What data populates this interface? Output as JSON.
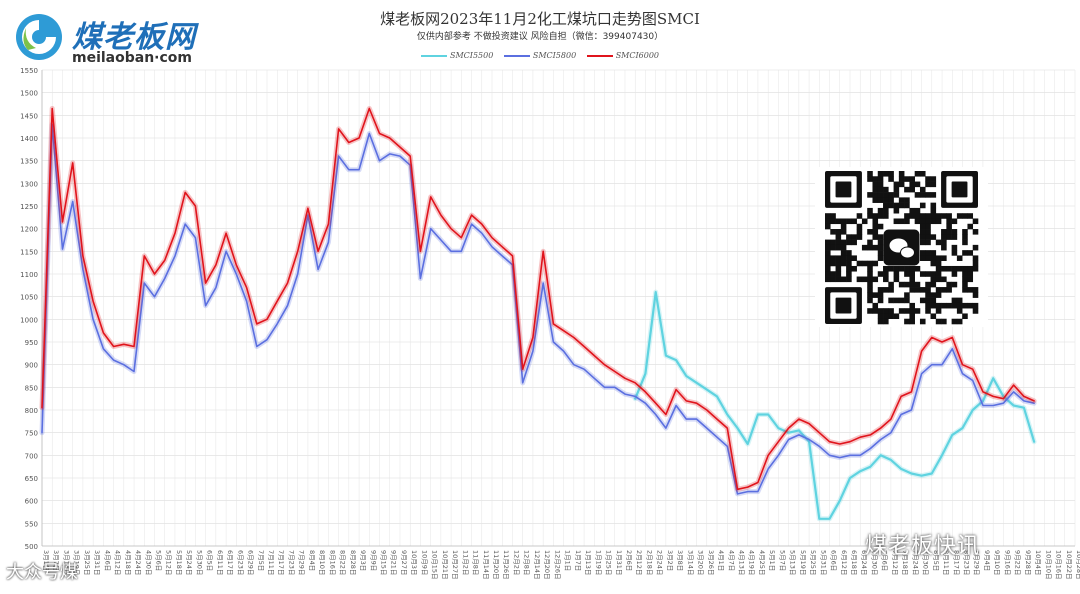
{
  "header": {
    "logo_text_cn": "煤老板网",
    "logo_text_en": "meilaoban·com",
    "title": "煤老板网2023年11月2化工煤坑口走势图SMCI",
    "subtitle": "仅供内部参考 不做投资建议 风险自担（微信：399407430）"
  },
  "watermarks": {
    "brand": "煤老板快讯",
    "corner": "大众号煤"
  },
  "qr": {
    "icon": "wechat-icon"
  },
  "chart_data": {
    "type": "line",
    "ylim": [
      500,
      1550
    ],
    "yticks": [
      500,
      550,
      600,
      650,
      700,
      750,
      800,
      850,
      900,
      950,
      1000,
      1050,
      1100,
      1150,
      1200,
      1250,
      1300,
      1350,
      1400,
      1450,
      1500,
      1550
    ],
    "grid": true,
    "legend_position": "top",
    "xlabels": [
      "3月1日",
      "3月7日",
      "3月13日",
      "3月19日",
      "3月25日",
      "3月31日",
      "4月6日",
      "4月12日",
      "4月18日",
      "4月24日",
      "4月30日",
      "5月6日",
      "5月12日",
      "5月18日",
      "5月24日",
      "5月30日",
      "6月5日",
      "6月11日",
      "6月17日",
      "6月23日",
      "6月29日",
      "7月5日",
      "7月11日",
      "7月17日",
      "7月23日",
      "7月29日",
      "8月4日",
      "8月10日",
      "8月16日",
      "8月22日",
      "8月28日",
      "9月3日",
      "9月9日",
      "9月15日",
      "9月21日",
      "9月27日",
      "10月3日",
      "10月9日",
      "10月15日",
      "10月21日",
      "10月27日",
      "11月2日",
      "11月8日",
      "11月14日",
      "11月20日",
      "11月26日",
      "12月2日",
      "12月8日",
      "12月14日",
      "12月20日",
      "12月26日",
      "1月1日",
      "1月7日",
      "1月13日",
      "1月19日",
      "1月25日",
      "1月31日",
      "2月6日",
      "2月12日",
      "2月18日",
      "2月24日",
      "3月2日",
      "3月8日",
      "3月14日",
      "3月20日",
      "3月26日",
      "4月1日",
      "4月7日",
      "4月13日",
      "4月19日",
      "4月25日",
      "5月1日",
      "5月7日",
      "5月13日",
      "5月19日",
      "5月25日",
      "5月31日",
      "6月6日",
      "6月12日",
      "6月18日",
      "6月24日",
      "6月30日",
      "7月6日",
      "7月12日",
      "7月18日",
      "7月24日",
      "7月30日",
      "8月5日",
      "8月11日",
      "8月17日",
      "8月23日",
      "8月29日",
      "9月4日",
      "9月10日",
      "9月16日",
      "9月22日",
      "9月28日",
      "10月4日",
      "10月10日",
      "10月16日",
      "10月22日",
      "10月28日"
    ],
    "series": [
      {
        "name": "SMCI5500",
        "color": "#5fd3e0",
        "values": [
          null,
          null,
          null,
          null,
          null,
          null,
          null,
          null,
          null,
          null,
          null,
          null,
          null,
          null,
          null,
          null,
          null,
          null,
          null,
          null,
          null,
          null,
          null,
          null,
          null,
          null,
          null,
          null,
          null,
          null,
          null,
          null,
          null,
          null,
          null,
          null,
          null,
          null,
          null,
          null,
          null,
          null,
          null,
          null,
          null,
          null,
          null,
          null,
          null,
          null,
          null,
          null,
          null,
          null,
          null,
          null,
          null,
          null,
          825,
          880,
          1060,
          920,
          910,
          875,
          860,
          845,
          830,
          790,
          760,
          725,
          790,
          790,
          760,
          750,
          755,
          730,
          560,
          560,
          600,
          650,
          665,
          675,
          700,
          690,
          670,
          660,
          655,
          660,
          700,
          745,
          760,
          800,
          820,
          870,
          830,
          810,
          805,
          730
        ]
      },
      {
        "name": "SMCI5800",
        "color": "#5b6fe0",
        "values": [
          750,
          1430,
          1155,
          1260,
          1110,
          1000,
          935,
          910,
          900,
          885,
          1080,
          1050,
          1090,
          1140,
          1210,
          1180,
          1030,
          1070,
          1150,
          1100,
          1040,
          940,
          955,
          990,
          1030,
          1100,
          1230,
          1110,
          1170,
          1360,
          1330,
          1330,
          1410,
          1350,
          1365,
          1360,
          1340,
          1090,
          1200,
          1175,
          1150,
          1150,
          1210,
          1190,
          1160,
          1140,
          1120,
          860,
          930,
          1080,
          950,
          930,
          900,
          890,
          870,
          850,
          850,
          835,
          830,
          815,
          790,
          760,
          810,
          780,
          780,
          760,
          740,
          720,
          615,
          620,
          620,
          670,
          700,
          735,
          745,
          735,
          720,
          700,
          695,
          700,
          700,
          715,
          735,
          750,
          790,
          800,
          880,
          900,
          900,
          935,
          880,
          865,
          810,
          810,
          815,
          840,
          820,
          815
        ]
      },
      {
        "name": "SMCI6000",
        "color": "#e0141c",
        "values": [
          805,
          1465,
          1215,
          1345,
          1140,
          1040,
          970,
          940,
          945,
          940,
          1140,
          1100,
          1130,
          1190,
          1280,
          1250,
          1080,
          1120,
          1190,
          1120,
          1070,
          990,
          1000,
          1040,
          1080,
          1150,
          1245,
          1150,
          1210,
          1420,
          1390,
          1400,
          1465,
          1410,
          1400,
          1380,
          1360,
          1150,
          1270,
          1230,
          1200,
          1180,
          1230,
          1210,
          1180,
          1160,
          1140,
          890,
          960,
          1150,
          990,
          975,
          960,
          940,
          920,
          900,
          885,
          870,
          860,
          840,
          815,
          790,
          845,
          820,
          815,
          800,
          780,
          760,
          625,
          630,
          640,
          700,
          730,
          760,
          780,
          770,
          750,
          730,
          725,
          730,
          740,
          745,
          760,
          780,
          830,
          840,
          930,
          960,
          950,
          960,
          900,
          890,
          840,
          830,
          825,
          855,
          830,
          820
        ]
      }
    ]
  }
}
